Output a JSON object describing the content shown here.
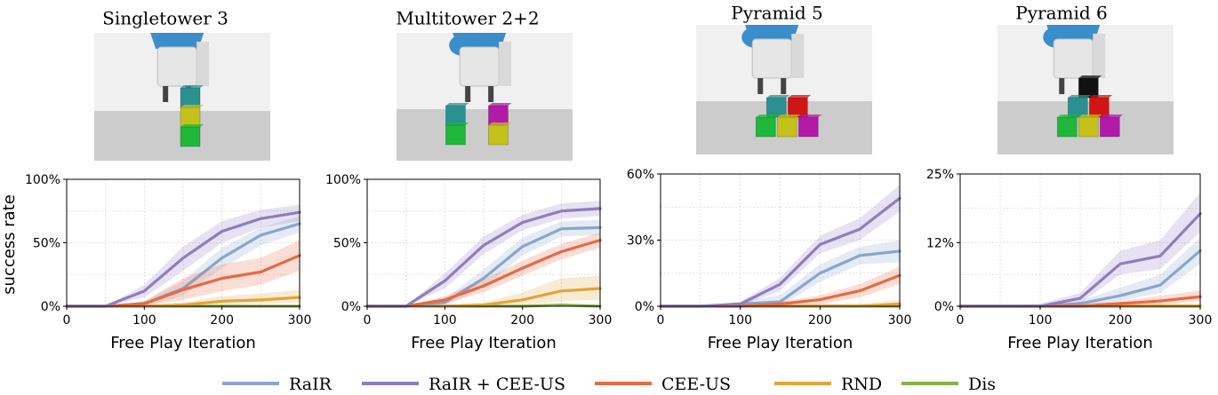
{
  "colors": {
    "RaIR": "#88a6cc",
    "RaIR + CEE-US": "#8f7dbd",
    "CEE-US": "#e66a44",
    "RND": "#e1a43a",
    "Dis": "#8ab048",
    "ground": "#cccccc",
    "wall": "#f0f0f0",
    "robot_blue": "#3a8ec9",
    "robot_white": "#e6e6e6"
  },
  "legend": [
    "RaIR",
    "RaIR + CEE-US",
    "CEE-US",
    "RND",
    "Dis"
  ],
  "chart_data": [
    {
      "type": "line",
      "title": "Singletower 3",
      "xlabel": "Free Play Iteration",
      "ylabel": "success rate",
      "xlim": [
        0,
        300
      ],
      "ylim": [
        0,
        100
      ],
      "xticks": [
        0,
        100,
        200,
        300
      ],
      "yticks": [
        0,
        50,
        100
      ],
      "ytick_labels": [
        "0%",
        "50%",
        "100%"
      ],
      "x": [
        0,
        50,
        100,
        150,
        200,
        250,
        300
      ],
      "series": [
        {
          "name": "RaIR",
          "values": [
            0,
            0,
            2,
            14,
            38,
            56,
            65
          ],
          "band": [
            [
              0,
              0
            ],
            [
              0,
              0
            ],
            [
              0,
              4
            ],
            [
              8,
              20
            ],
            [
              30,
              46
            ],
            [
              48,
              62
            ],
            [
              58,
              71
            ]
          ]
        },
        {
          "name": "RaIR + CEE-US",
          "values": [
            0,
            0,
            12,
            38,
            59,
            69,
            74
          ],
          "band": [
            [
              0,
              0
            ],
            [
              0,
              0
            ],
            [
              7,
              17
            ],
            [
              28,
              47
            ],
            [
              50,
              67
            ],
            [
              62,
              76
            ],
            [
              67,
              80
            ]
          ]
        },
        {
          "name": "CEE-US",
          "values": [
            0,
            0,
            2,
            13,
            22,
            27,
            40
          ],
          "band": [
            [
              0,
              0
            ],
            [
              0,
              0
            ],
            [
              0,
              4
            ],
            [
              5,
              22
            ],
            [
              12,
              33
            ],
            [
              17,
              38
            ],
            [
              28,
              52
            ]
          ]
        },
        {
          "name": "RND",
          "values": [
            0,
            0,
            0,
            1,
            4,
            5,
            7
          ],
          "band": [
            [
              0,
              0
            ],
            [
              0,
              0
            ],
            [
              0,
              1
            ],
            [
              0,
              3
            ],
            [
              1,
              8
            ],
            [
              2,
              10
            ],
            [
              3,
              13
            ]
          ]
        },
        {
          "name": "Dis",
          "values": [
            0,
            0,
            0,
            0,
            0,
            0,
            0
          ],
          "band": [
            [
              0,
              0
            ],
            [
              0,
              0
            ],
            [
              0,
              0
            ],
            [
              0,
              1
            ],
            [
              0,
              1
            ],
            [
              0,
              1
            ],
            [
              0,
              1
            ]
          ]
        }
      ],
      "scene": {
        "blocks": [
          {
            "color": "#2b9090",
            "col": 0,
            "level": 2
          },
          {
            "color": "#c4c11a",
            "col": 0,
            "level": 1
          },
          {
            "color": "#1fb73a",
            "col": 0,
            "level": 0
          }
        ]
      }
    },
    {
      "type": "line",
      "title": "Multitower 2+2",
      "xlabel": "Free Play Iteration",
      "ylabel": "",
      "xlim": [
        0,
        300
      ],
      "ylim": [
        0,
        100
      ],
      "xticks": [
        0,
        100,
        200,
        300
      ],
      "yticks": [
        0,
        50,
        100
      ],
      "ytick_labels": [
        "0%",
        "50%",
        "100%"
      ],
      "x": [
        0,
        50,
        100,
        150,
        200,
        250,
        300
      ],
      "series": [
        {
          "name": "RaIR",
          "values": [
            0,
            0,
            3,
            22,
            47,
            61,
            62
          ],
          "band": [
            [
              0,
              0
            ],
            [
              0,
              0
            ],
            [
              0,
              6
            ],
            [
              15,
              29
            ],
            [
              40,
              54
            ],
            [
              55,
              67
            ],
            [
              56,
              68
            ]
          ]
        },
        {
          "name": "RaIR + CEE-US",
          "values": [
            0,
            0,
            20,
            48,
            66,
            75,
            77
          ],
          "band": [
            [
              0,
              0
            ],
            [
              0,
              0
            ],
            [
              14,
              26
            ],
            [
              41,
              55
            ],
            [
              60,
              72
            ],
            [
              69,
              81
            ],
            [
              71,
              83
            ]
          ]
        },
        {
          "name": "CEE-US",
          "values": [
            0,
            0,
            5,
            16,
            30,
            43,
            52
          ],
          "band": [
            [
              0,
              0
            ],
            [
              0,
              0
            ],
            [
              2,
              8
            ],
            [
              11,
              21
            ],
            [
              24,
              36
            ],
            [
              37,
              49
            ],
            [
              46,
              58
            ]
          ]
        },
        {
          "name": "RND",
          "values": [
            0,
            0,
            0,
            1,
            5,
            12,
            14
          ],
          "band": [
            [
              0,
              0
            ],
            [
              0,
              0
            ],
            [
              0,
              1
            ],
            [
              0,
              3
            ],
            [
              1,
              11
            ],
            [
              4,
              22
            ],
            [
              5,
              24
            ]
          ]
        },
        {
          "name": "Dis",
          "values": [
            0,
            0,
            0,
            0,
            0,
            1,
            0
          ],
          "band": [
            [
              0,
              0
            ],
            [
              0,
              0
            ],
            [
              0,
              0
            ],
            [
              0,
              1
            ],
            [
              0,
              1
            ],
            [
              0,
              2
            ],
            [
              0,
              1
            ]
          ]
        }
      ],
      "scene": {
        "blocks": [
          {
            "color": "#2b9090",
            "col": 0,
            "level": 1
          },
          {
            "color": "#1fb73a",
            "col": 0,
            "level": 0
          },
          {
            "color": "#b21aa8",
            "col": 1,
            "level": 1
          },
          {
            "color": "#c4c11a",
            "col": 1,
            "level": 0
          }
        ]
      }
    },
    {
      "type": "line",
      "title": "Pyramid 5",
      "xlabel": "Free Play Iteration",
      "ylabel": "",
      "xlim": [
        0,
        300
      ],
      "ylim": [
        0,
        60
      ],
      "xticks": [
        0,
        100,
        200,
        300
      ],
      "yticks": [
        0,
        30,
        60
      ],
      "ytick_labels": [
        "0%",
        "30%",
        "60%"
      ],
      "x": [
        0,
        50,
        100,
        150,
        200,
        250,
        300
      ],
      "series": [
        {
          "name": "RaIR",
          "values": [
            0,
            0,
            1,
            2,
            15,
            23,
            25
          ],
          "band": [
            [
              0,
              0
            ],
            [
              0,
              0
            ],
            [
              0,
              2
            ],
            [
              0,
              5
            ],
            [
              11,
              19
            ],
            [
              19,
              27
            ],
            [
              20,
              30
            ]
          ]
        },
        {
          "name": "RaIR + CEE-US",
          "values": [
            0,
            0,
            1,
            10,
            28,
            35,
            49
          ],
          "band": [
            [
              0,
              0
            ],
            [
              0,
              0
            ],
            [
              0,
              2
            ],
            [
              7,
              13
            ],
            [
              24,
              32
            ],
            [
              30,
              40
            ],
            [
              43,
              55
            ]
          ]
        },
        {
          "name": "CEE-US",
          "values": [
            0,
            0,
            0,
            1,
            3,
            7,
            14
          ],
          "band": [
            [
              0,
              0
            ],
            [
              0,
              0
            ],
            [
              0,
              1
            ],
            [
              0,
              2
            ],
            [
              1,
              5
            ],
            [
              4,
              10
            ],
            [
              10,
              18
            ]
          ]
        },
        {
          "name": "RND",
          "values": [
            0,
            0,
            0,
            0,
            0,
            0,
            1
          ],
          "band": [
            [
              0,
              0
            ],
            [
              0,
              0
            ],
            [
              0,
              0
            ],
            [
              0,
              1
            ],
            [
              0,
              1
            ],
            [
              0,
              1
            ],
            [
              0,
              3
            ]
          ]
        },
        {
          "name": "Dis",
          "values": [
            0,
            0,
            0,
            0,
            0,
            0,
            0
          ],
          "band": [
            [
              0,
              0
            ],
            [
              0,
              0
            ],
            [
              0,
              0
            ],
            [
              0,
              0
            ],
            [
              0,
              1
            ],
            [
              0,
              1
            ],
            [
              0,
              1
            ]
          ]
        }
      ],
      "scene": {
        "blocks": [
          {
            "color": "#2b9090",
            "col": 0.5,
            "level": 1
          },
          {
            "color": "#d01515",
            "col": 1.5,
            "level": 1
          },
          {
            "color": "#1fb73a",
            "col": 0,
            "level": 0
          },
          {
            "color": "#c4c11a",
            "col": 1,
            "level": 0
          },
          {
            "color": "#b21aa8",
            "col": 2,
            "level": 0
          }
        ]
      }
    },
    {
      "type": "line",
      "title": "Pyramid 6",
      "xlabel": "Free Play Iteration",
      "ylabel": "",
      "xlim": [
        0,
        300
      ],
      "ylim": [
        0,
        25
      ],
      "xticks": [
        0,
        100,
        200,
        300
      ],
      "yticks": [
        0,
        12,
        25
      ],
      "ytick_labels": [
        "0%",
        "12%",
        "25%"
      ],
      "x": [
        0,
        50,
        100,
        150,
        200,
        250,
        300
      ],
      "series": [
        {
          "name": "RaIR",
          "values": [
            0,
            0,
            0,
            0.5,
            2,
            4,
            10.5
          ],
          "band": [
            [
              0,
              0
            ],
            [
              0,
              0
            ],
            [
              0,
              0
            ],
            [
              0,
              1
            ],
            [
              1,
              3.5
            ],
            [
              2.5,
              6
            ],
            [
              8,
              13
            ]
          ]
        },
        {
          "name": "RaIR + CEE-US",
          "values": [
            0,
            0,
            0,
            1.5,
            8,
            9.5,
            17.5
          ],
          "band": [
            [
              0,
              0
            ],
            [
              0,
              0
            ],
            [
              0,
              0.5
            ],
            [
              0.5,
              2.5
            ],
            [
              6,
              10.5
            ],
            [
              7,
              12.5
            ],
            [
              14,
              21.5
            ]
          ]
        },
        {
          "name": "CEE-US",
          "values": [
            0,
            0,
            0,
            0,
            0.5,
            1,
            1.8
          ],
          "band": [
            [
              0,
              0
            ],
            [
              0,
              0
            ],
            [
              0,
              0
            ],
            [
              0,
              0.5
            ],
            [
              0,
              1
            ],
            [
              0.3,
              2
            ],
            [
              1,
              3
            ]
          ]
        },
        {
          "name": "RND",
          "values": [
            0,
            0,
            0,
            0,
            0,
            0,
            0
          ],
          "band": [
            [
              0,
              0
            ],
            [
              0,
              0
            ],
            [
              0,
              0
            ],
            [
              0,
              0
            ],
            [
              0,
              0.5
            ],
            [
              0,
              0.5
            ],
            [
              0,
              0.5
            ]
          ]
        },
        {
          "name": "Dis",
          "values": [
            0,
            0,
            0,
            0,
            0,
            0,
            0
          ],
          "band": [
            [
              0,
              0
            ],
            [
              0,
              0
            ],
            [
              0,
              0
            ],
            [
              0,
              0
            ],
            [
              0,
              0
            ],
            [
              0,
              0
            ],
            [
              0,
              0
            ]
          ]
        }
      ],
      "scene": {
        "blocks": [
          {
            "color": "#111111",
            "col": 1,
            "level": 2
          },
          {
            "color": "#2b9090",
            "col": 0.5,
            "level": 1
          },
          {
            "color": "#d01515",
            "col": 1.5,
            "level": 1
          },
          {
            "color": "#1fb73a",
            "col": 0,
            "level": 0
          },
          {
            "color": "#c4c11a",
            "col": 1,
            "level": 0
          },
          {
            "color": "#b21aa8",
            "col": 2,
            "level": 0
          }
        ]
      }
    }
  ]
}
